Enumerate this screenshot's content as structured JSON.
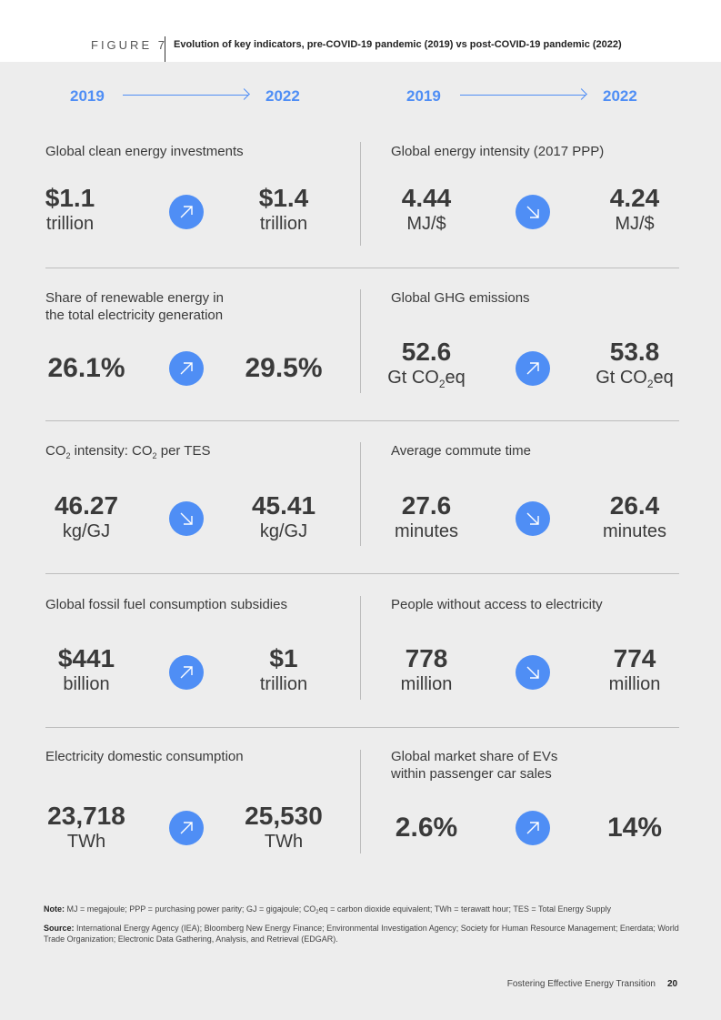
{
  "figure": {
    "label": "FIGURE 7",
    "title": "Evolution of key indicators, pre-COVID-19 pandemic (2019) vs post-COVID-19 pandemic (2022)"
  },
  "years": {
    "from": "2019",
    "to": "2022"
  },
  "indicators": [
    {
      "title": "Global clean energy investments",
      "v2019": "$1.1",
      "u2019": "trillion",
      "v2022": "$1.4",
      "u2022": "trillion",
      "trend": "up"
    },
    {
      "title": "Global energy intensity (2017 PPP)",
      "v2019": "4.44",
      "u2019": "MJ/$",
      "v2022": "4.24",
      "u2022": "MJ/$",
      "trend": "down"
    },
    {
      "title_line1": "Share of renewable energy in",
      "title_line2": "the total electricity generation",
      "v2019": "26.1%",
      "v2022": "29.5%",
      "trend": "up"
    },
    {
      "title": "Global GHG emissions",
      "v2019": "52.6",
      "u2019_pre": "Gt CO",
      "u2019_sub": "2",
      "u2019_post": "eq",
      "v2022": "53.8",
      "u2022_pre": "Gt CO",
      "u2022_sub": "2",
      "u2022_post": "eq",
      "trend": "up"
    },
    {
      "title_p1": "CO",
      "title_sub1": "2",
      "title_p2": " intensity: CO",
      "title_sub2": "2",
      "title_p3": " per TES",
      "v2019": "46.27",
      "u2019": "kg/GJ",
      "v2022": "45.41",
      "u2022": "kg/GJ",
      "trend": "down"
    },
    {
      "title": "Average commute time",
      "v2019": "27.6",
      "u2019": "minutes",
      "v2022": "26.4",
      "u2022": "minutes",
      "trend": "down"
    },
    {
      "title": "Global fossil fuel consumption subsidies",
      "v2019": "$441",
      "u2019": "billion",
      "v2022": "$1",
      "u2022": "trillion",
      "trend": "up"
    },
    {
      "title": "People without access to electricity",
      "v2019": "778",
      "u2019": "million",
      "v2022": "774",
      "u2022": "million",
      "trend": "down"
    },
    {
      "title": "Electricity domestic consumption",
      "v2019": "23,718",
      "u2019": "TWh",
      "v2022": "25,530",
      "u2022": "TWh",
      "trend": "up"
    },
    {
      "title_line1": "Global market share of EVs",
      "title_line2": "within passenger car sales",
      "v2019": "2.6%",
      "v2022": "14%",
      "trend": "up"
    }
  ],
  "note": {
    "label": "Note:",
    "text_a": " MJ = megajoule; PPP = purchasing power parity; GJ = gigajoule; CO",
    "text_sub": "2",
    "text_b": "eq = carbon dioxide equivalent; TWh = terawatt hour; TES = Total Energy Supply"
  },
  "source": {
    "label": "Source:",
    "text": " International Energy Agency (IEA); Bloomberg New Energy Finance; Environmental Investigation Agency; Society for Human Resource Management; Enerdata; World Trade Organization; Electronic Data Gathering, Analysis, and Retrieval (EDGAR)."
  },
  "footer": {
    "text": "Fostering Effective Energy Transition",
    "page": "20"
  },
  "colors": {
    "accent": "#4f8ef5",
    "panel": "#ededed",
    "divider": "#bdbdbd"
  },
  "icons": {
    "up": "arrow-up-right-icon",
    "down": "arrow-down-right-icon"
  }
}
